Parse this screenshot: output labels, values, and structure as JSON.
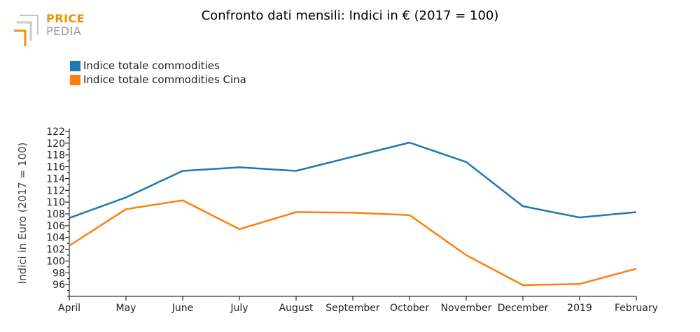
{
  "logo": {
    "line1": "PRICE",
    "line2": "PEDIA",
    "color_primary": "#f39200",
    "color_secondary": "#9a9a9a"
  },
  "chart_data": {
    "type": "line",
    "title": "Confronto dati mensili: Indici in € (2017 = 100)",
    "xlabel": "",
    "ylabel": "Indici in Euro (2017 = 100)",
    "categories": [
      "April",
      "May",
      "June",
      "July",
      "August",
      "September",
      "October",
      "November",
      "December",
      "2019",
      "February"
    ],
    "ylim": [
      94,
      122
    ],
    "yticks": [
      96,
      98,
      100,
      102,
      104,
      106,
      108,
      110,
      112,
      114,
      116,
      118,
      120,
      122
    ],
    "grid": false,
    "legend_position": "top-left",
    "series": [
      {
        "name": "Indice totale commodities",
        "color": "#1f77b4",
        "values": [
          107.3,
          110.8,
          115.3,
          115.9,
          115.3,
          117.7,
          120.1,
          116.8,
          109.3,
          107.4,
          108.3
        ]
      },
      {
        "name": "Indice totale commodities Cina",
        "color": "#ff7f0e",
        "values": [
          102.6,
          108.8,
          110.3,
          105.4,
          108.3,
          108.2,
          107.8,
          101.0,
          95.9,
          96.1,
          98.7
        ]
      }
    ]
  }
}
